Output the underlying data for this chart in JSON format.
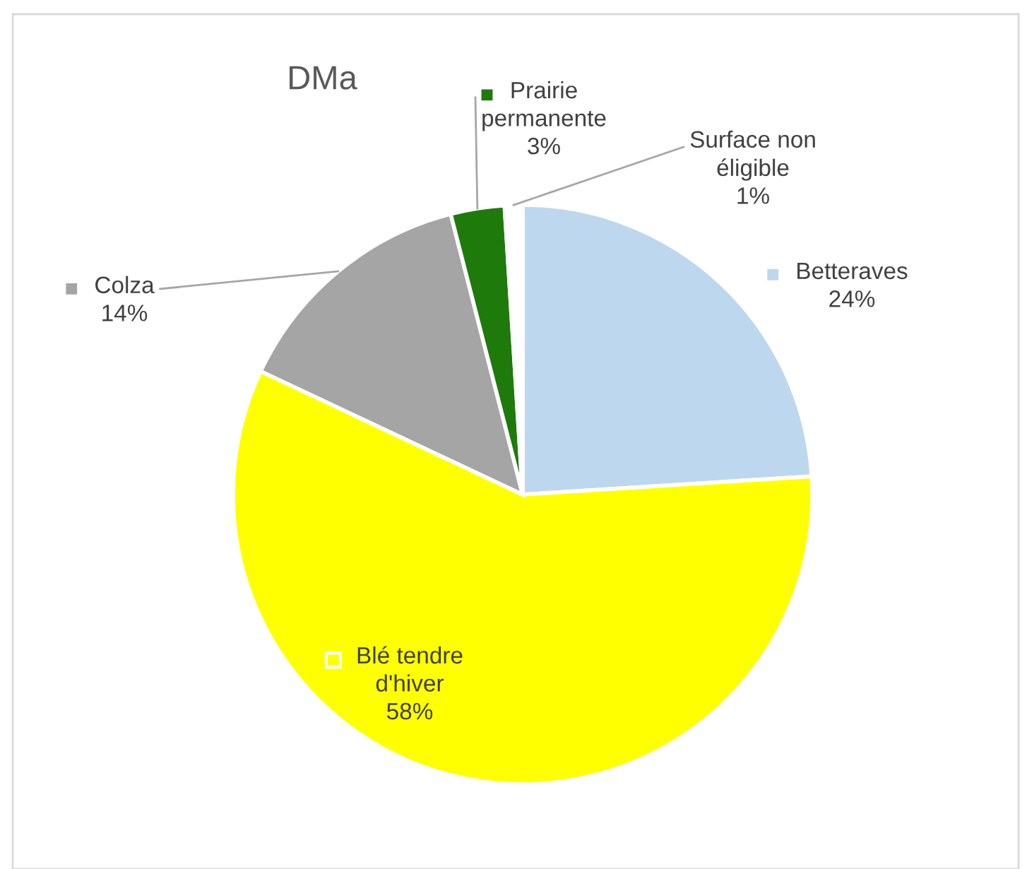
{
  "chart_data": {
    "type": "pie",
    "title": "DMa",
    "categories": [
      "Betteraves",
      "Blé tendre d'hiver",
      "Colza",
      "Prairie permanente",
      "Surface non éligible"
    ],
    "values": [
      24,
      58,
      14,
      3,
      1
    ],
    "value_labels": [
      "24%",
      "58%",
      "14%",
      "3%",
      "1%"
    ],
    "colors": [
      "#bdd7ee",
      "#ffff00",
      "#a5a5a5",
      "#1f7a0c",
      "#ffffff"
    ],
    "legend": "top"
  }
}
